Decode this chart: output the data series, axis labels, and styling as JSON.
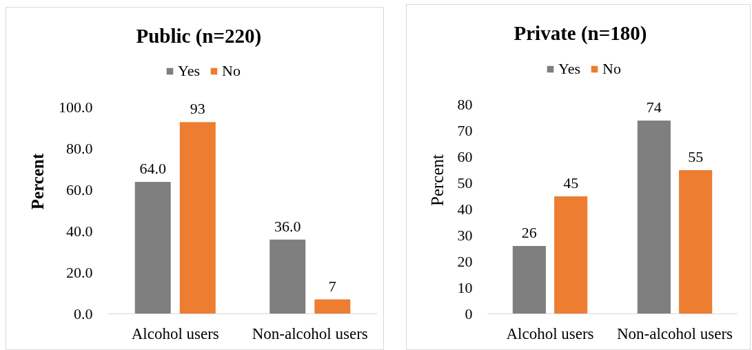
{
  "chart_data": [
    {
      "type": "bar",
      "title": "Public (n=220)",
      "ylabel": "Percent",
      "categories": [
        "Alcohol users",
        "Non-alcohol users"
      ],
      "series": [
        {
          "name": "Yes",
          "color": "#7f7f7f",
          "values": [
            64,
            36
          ],
          "value_labels": [
            "64.0",
            "36.0"
          ]
        },
        {
          "name": "No",
          "color": "#ed7d31",
          "values": [
            93,
            7
          ],
          "value_labels": [
            "93",
            "7"
          ]
        }
      ],
      "ylim": [
        0,
        100
      ],
      "yticks": [
        {
          "value": 0,
          "label": "0.0"
        },
        {
          "value": 20,
          "label": "20.0"
        },
        {
          "value": 40,
          "label": "40.0"
        },
        {
          "value": 60,
          "label": "60.0"
        },
        {
          "value": 80,
          "label": "80.0"
        },
        {
          "value": 100,
          "label": "100.0"
        }
      ],
      "legend": "top"
    },
    {
      "type": "bar",
      "title": "Private (n=180)",
      "ylabel": "Percent",
      "categories": [
        "Alcohol users",
        "Non-alcohol users"
      ],
      "series": [
        {
          "name": "Yes",
          "color": "#7f7f7f",
          "values": [
            26,
            74
          ]
        },
        {
          "name": "No",
          "color": "#ed7d31",
          "values": [
            45,
            55
          ]
        }
      ],
      "ylim": [
        0,
        80
      ],
      "yticks": [
        0,
        10,
        20,
        30,
        40,
        50,
        60,
        70,
        80
      ],
      "legend": "top",
      "data_labels": true
    }
  ]
}
